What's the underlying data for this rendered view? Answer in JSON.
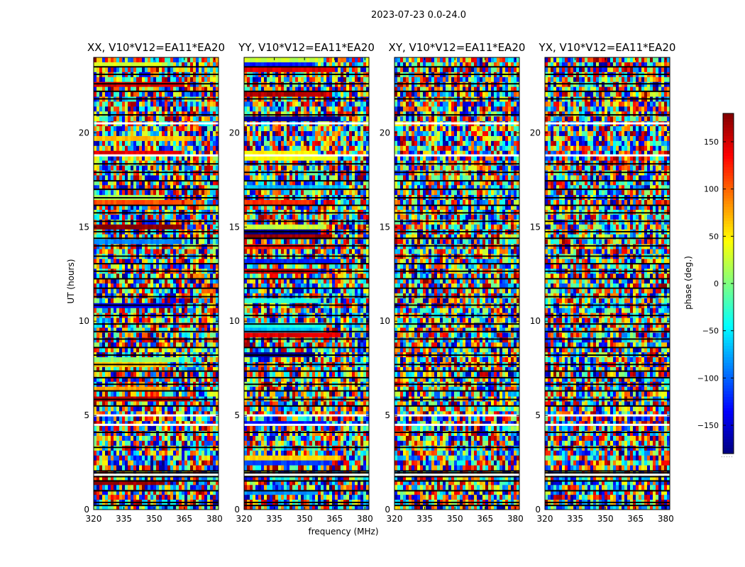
{
  "chart_data": {
    "type": "heatmap",
    "suptitle": "2023-07-23 0.0-24.0",
    "panels": [
      {
        "title": "XX, V10*V12=EA11*EA20",
        "pol": "XX"
      },
      {
        "title": "YY, V10*V12=EA11*EA20",
        "pol": "YY"
      },
      {
        "title": "XY, V10*V12=EA11*EA20",
        "pol": "XY"
      },
      {
        "title": "YX, V10*V12=EA11*EA20",
        "pol": "YX"
      }
    ],
    "xlabel": "frequency (MHz)",
    "ylabel": "UT (hours)",
    "xlim": [
      320,
      382
    ],
    "ylim": [
      0,
      24
    ],
    "xticks": [
      320,
      335,
      350,
      365,
      380
    ],
    "yticks": [
      0,
      5,
      10,
      15,
      20
    ],
    "colorbar": {
      "label": "phase (deg.)",
      "range": [
        -180,
        180
      ],
      "ticks": [
        150,
        100,
        50,
        0,
        -50,
        -100,
        -150
      ],
      "tick_labels": [
        "150",
        "100",
        "50",
        "0",
        "−50",
        "−100",
        "−150"
      ],
      "colormap": "jet",
      "footer": "....."
    },
    "gap_rows_hours": [
      0.22,
      0.38,
      1.0,
      1.52,
      1.75,
      1.95,
      2.05,
      3.3,
      4.1,
      4.5,
      5.0,
      5.5,
      5.85,
      6.3,
      6.65,
      7.0,
      7.35,
      7.7,
      8.2,
      8.6,
      9.05,
      9.45,
      9.85,
      10.3,
      10.85,
      11.3,
      11.75,
      12.25,
      12.65,
      13.05,
      13.45,
      14.0,
      14.4,
      14.75,
      15.3,
      15.75,
      16.15,
      16.55,
      17.0,
      17.45,
      17.9,
      18.35,
      18.8,
      20.5,
      20.95,
      21.8,
      22.2,
      22.6,
      23.1,
      23.5
    ],
    "thick_gap_hours": [
      1.85,
      4.5,
      5.0,
      18.8,
      20.5
    ]
  }
}
